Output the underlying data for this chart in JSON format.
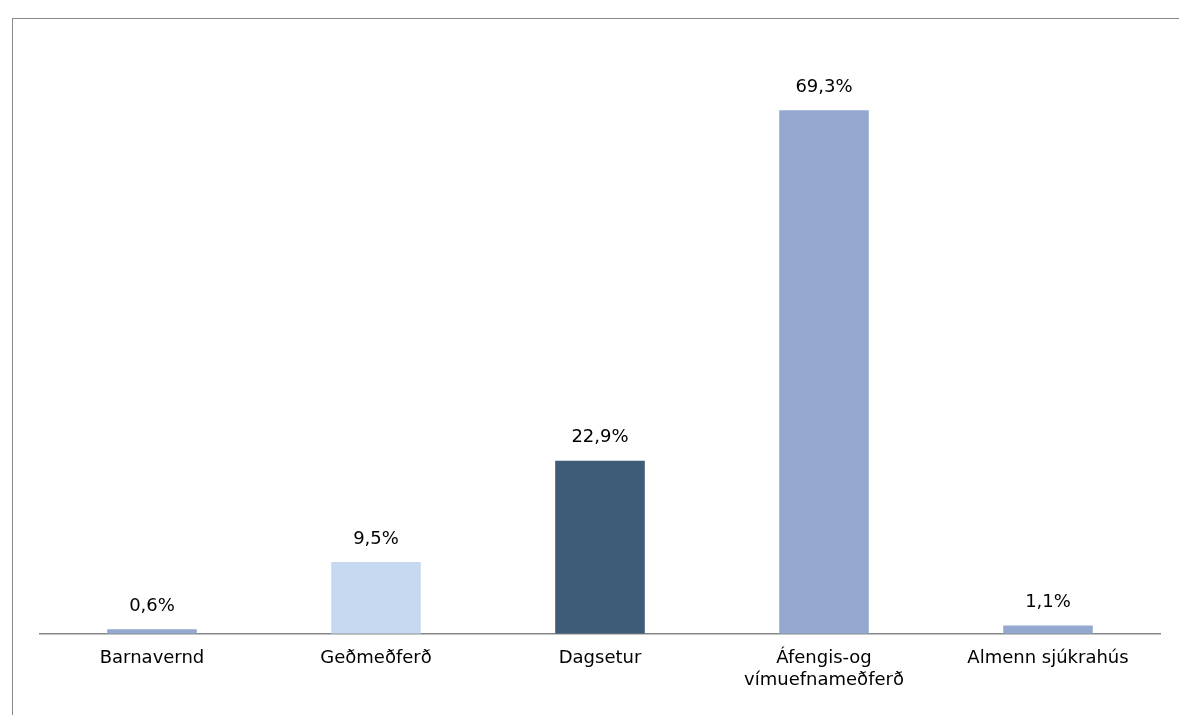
{
  "chart_data": {
    "type": "bar",
    "categories": [
      "Barnavernd",
      "Geðmeðferð",
      "Dagsetur",
      "Áfengis-og vímuefnameðferð",
      "Almenn sjúkrahús"
    ],
    "values": [
      0.6,
      9.5,
      22.9,
      69.3,
      1.1
    ],
    "colors": [
      "#95a9d0",
      "#c6d9f0",
      "#3e5b78",
      "#95a9d0",
      "#95a9d0"
    ],
    "value_labels": [
      "0,6%",
      "9,5%",
      "22,9%",
      "69,3%",
      "1,1%"
    ]
  }
}
